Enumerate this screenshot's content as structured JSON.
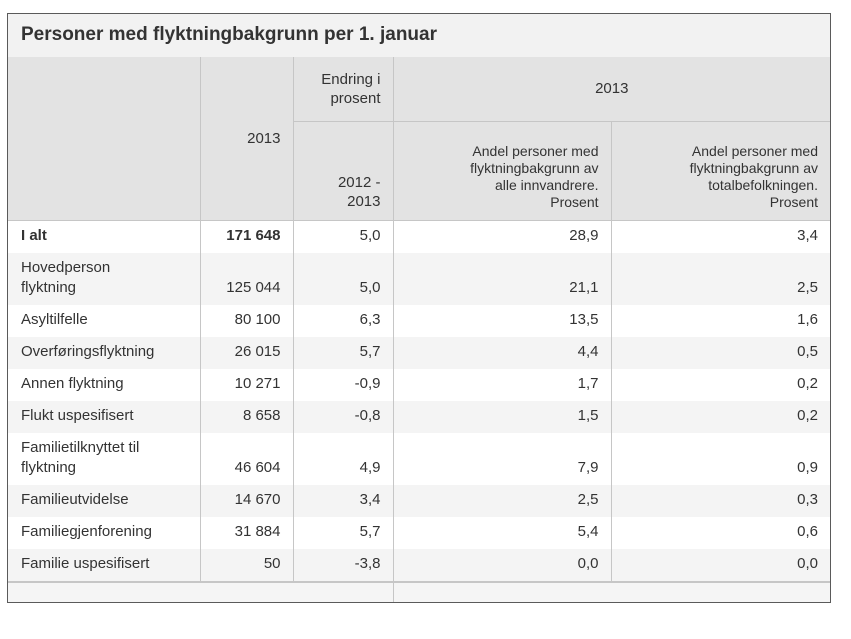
{
  "chart_data": {
    "type": "table",
    "title": "Personer med flyktningbakgrunn per 1. januar",
    "header": {
      "year": "2013",
      "change_label": "Endring i\nprosent",
      "period": "2012 -\n2013",
      "year_group": "2013",
      "share_immigrants": "Andel personer med\nflyktningbakgrunn av\nalle innvandrere.\nProsent",
      "share_population": "Andel personer med\nflyktningbakgrunn av\ntotalbefolkningen.\nProsent"
    },
    "rows": [
      {
        "label": "I alt",
        "total": "171 648",
        "change": "5,0",
        "share_immigrants": "28,9",
        "share_population": "3,4"
      },
      {
        "label": "Hovedperson\nflyktning",
        "total": "125 044",
        "change": "5,0",
        "share_immigrants": "21,1",
        "share_population": "2,5"
      },
      {
        "label": "Asyltilfelle",
        "total": "80 100",
        "change": "6,3",
        "share_immigrants": "13,5",
        "share_population": "1,6"
      },
      {
        "label": "Overføringsflyktning",
        "total": "26 015",
        "change": "5,7",
        "share_immigrants": "4,4",
        "share_population": "0,5"
      },
      {
        "label": "Annen flyktning",
        "total": "10 271",
        "change": "-0,9",
        "share_immigrants": "1,7",
        "share_population": "0,2"
      },
      {
        "label": "Flukt uspesifisert",
        "total": "8 658",
        "change": "-0,8",
        "share_immigrants": "1,5",
        "share_population": "0,2"
      },
      {
        "label": "Familietilknyttet til\nflyktning",
        "total": "46 604",
        "change": "4,9",
        "share_immigrants": "7,9",
        "share_population": "0,9"
      },
      {
        "label": "Familieutvidelse",
        "total": "14 670",
        "change": "3,4",
        "share_immigrants": "2,5",
        "share_population": "0,3"
      },
      {
        "label": "Familiegjenforening",
        "total": "31 884",
        "change": "5,7",
        "share_immigrants": "5,4",
        "share_population": "0,6"
      },
      {
        "label": "Familie uspesifisert",
        "total": "50",
        "change": "-3,8",
        "share_immigrants": "0,0",
        "share_population": "0,0"
      }
    ]
  },
  "colors": {
    "title_bg": "#f2f2f2",
    "header_bg": "#e3e3e3",
    "zebra_row_bg": "#f4f4f4",
    "footer_bg": "#f5f5f5",
    "outer_border": "#5a5a5a",
    "inner_border": "#c6c6c6",
    "text": "#333333"
  }
}
